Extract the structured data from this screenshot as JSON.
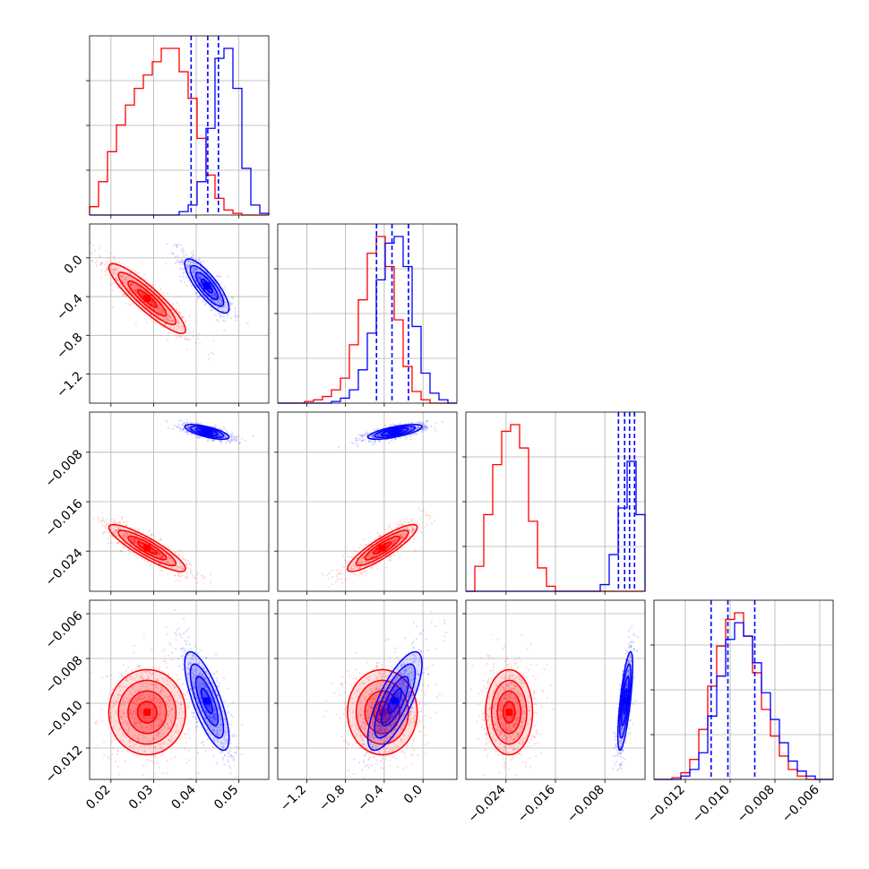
{
  "chart_data": {
    "type": "scatter",
    "layout": "corner-plot",
    "title": "",
    "grid": true,
    "series": [
      {
        "color": "#ff0000"
      },
      {
        "color": "#0000ff"
      }
    ],
    "parameters": [
      {
        "range": [
          0.015,
          0.057
        ],
        "ticks": [
          0.02,
          0.03,
          0.04,
          0.05
        ],
        "tick_labels": [
          "0.02",
          "0.03",
          "0.04",
          "0.05"
        ],
        "hist_red": [
          0.05,
          0.2,
          0.38,
          0.54,
          0.66,
          0.76,
          0.84,
          0.92,
          1.0,
          1.0,
          0.86,
          0.7,
          0.46,
          0.24,
          0.1,
          0.03,
          0.01,
          0,
          0,
          0
        ],
        "hist_blue": [
          0,
          0,
          0,
          0,
          0,
          0,
          0,
          0,
          0,
          0,
          0.02,
          0.06,
          0.2,
          0.52,
          0.94,
          1.0,
          0.76,
          0.28,
          0.06,
          0.01
        ],
        "quantiles_blue": [
          0.0388,
          0.0427,
          0.0452
        ]
      },
      {
        "range": [
          -1.5,
          0.35
        ],
        "ticks": [
          -1.2,
          -0.8,
          -0.4,
          0.0
        ],
        "tick_labels": [
          "−1.2",
          "−0.8",
          "−0.4",
          "0.0"
        ],
        "hist_red": [
          0,
          0,
          0,
          0.01,
          0.02,
          0.04,
          0.08,
          0.15,
          0.35,
          0.62,
          0.9,
          1.0,
          0.82,
          0.5,
          0.22,
          0.07,
          0.02,
          0,
          0,
          0
        ],
        "hist_blue": [
          0,
          0,
          0,
          0,
          0,
          0,
          0.01,
          0.03,
          0.08,
          0.2,
          0.42,
          0.74,
          0.96,
          1.0,
          0.82,
          0.46,
          0.18,
          0.06,
          0.02,
          0
        ],
        "quantiles_blue": [
          -0.48,
          -0.32,
          -0.15
        ]
      },
      {
        "range": [
          -0.0305,
          -0.0015
        ],
        "ticks": [
          -0.024,
          -0.016,
          -0.008
        ],
        "tick_labels": [
          "−0.024",
          "−0.016",
          "−0.008"
        ],
        "hist_red": [
          0,
          0.15,
          0.46,
          0.76,
          0.96,
          1.0,
          0.86,
          0.42,
          0.14,
          0.03,
          0,
          0,
          0,
          0,
          0,
          0,
          0,
          0,
          0,
          0
        ],
        "hist_blue": [
          0,
          0,
          0,
          0,
          0,
          0,
          0,
          0,
          0,
          0,
          0,
          0,
          0,
          0,
          0,
          0.04,
          0.22,
          0.5,
          0.78,
          0.46
        ],
        "quantiles_blue": [
          -0.0058,
          -0.0048,
          -0.004,
          -0.0032
        ]
      },
      {
        "range": [
          -0.0134,
          -0.0054
        ],
        "ticks": [
          -0.012,
          -0.01,
          -0.008,
          -0.006
        ],
        "tick_labels": [
          "−0.012",
          "−0.010",
          "−0.008",
          "−0.006"
        ],
        "hist_red": [
          0,
          0,
          0.01,
          0.04,
          0.12,
          0.3,
          0.56,
          0.8,
          0.96,
          1.0,
          0.86,
          0.64,
          0.42,
          0.26,
          0.14,
          0.06,
          0.02,
          0,
          0,
          0
        ],
        "hist_blue": [
          0,
          0,
          0,
          0.02,
          0.06,
          0.16,
          0.38,
          0.62,
          0.84,
          0.94,
          0.86,
          0.7,
          0.52,
          0.36,
          0.22,
          0.11,
          0.05,
          0.02,
          0,
          0
        ],
        "quantiles_blue": [
          -0.01085,
          -0.0101,
          -0.0089
        ]
      }
    ],
    "pairs_red": [
      {
        "x": 0,
        "y": 1,
        "cx": 0.0285,
        "cy": -0.42,
        "sx": 0.0045,
        "sy": 0.18,
        "rho": -0.9
      },
      {
        "x": 0,
        "y": 2,
        "cx": 0.0285,
        "cy": -0.0235,
        "sx": 0.0045,
        "sy": 0.0019,
        "rho": -0.88
      },
      {
        "x": 0,
        "y": 3,
        "cx": 0.0285,
        "cy": -0.0104,
        "sx": 0.0045,
        "sy": 0.00095,
        "rho": 0.0
      },
      {
        "x": 1,
        "y": 2,
        "cx": -0.42,
        "cy": -0.0235,
        "sx": 0.18,
        "sy": 0.0019,
        "rho": 0.88
      },
      {
        "x": 1,
        "y": 3,
        "cx": -0.42,
        "cy": -0.0104,
        "sx": 0.18,
        "sy": 0.00095,
        "rho": 0.0
      },
      {
        "x": 2,
        "y": 3,
        "cx": -0.0235,
        "cy": -0.0104,
        "sx": 0.0019,
        "sy": 0.00095,
        "rho": 0.0
      }
    ],
    "pairs_blue": [
      {
        "x": 0,
        "y": 1,
        "cx": 0.0425,
        "cy": -0.29,
        "sx": 0.0026,
        "sy": 0.14,
        "rho": -0.82
      },
      {
        "x": 0,
        "y": 2,
        "cx": 0.0425,
        "cy": -0.0047,
        "sx": 0.0026,
        "sy": 0.0006,
        "rho": -0.7
      },
      {
        "x": 0,
        "y": 3,
        "cx": 0.0425,
        "cy": -0.0099,
        "sx": 0.0026,
        "sy": 0.0011,
        "rho": -0.75
      },
      {
        "x": 1,
        "y": 2,
        "cx": -0.29,
        "cy": -0.0047,
        "sx": 0.14,
        "sy": 0.0006,
        "rho": 0.7
      },
      {
        "x": 1,
        "y": 3,
        "cx": -0.29,
        "cy": -0.0099,
        "sx": 0.14,
        "sy": 0.0011,
        "rho": 0.75
      },
      {
        "x": 2,
        "y": 3,
        "cx": -0.0047,
        "cy": -0.0099,
        "sx": 0.0006,
        "sy": 0.0011,
        "rho": 0.72
      }
    ]
  }
}
